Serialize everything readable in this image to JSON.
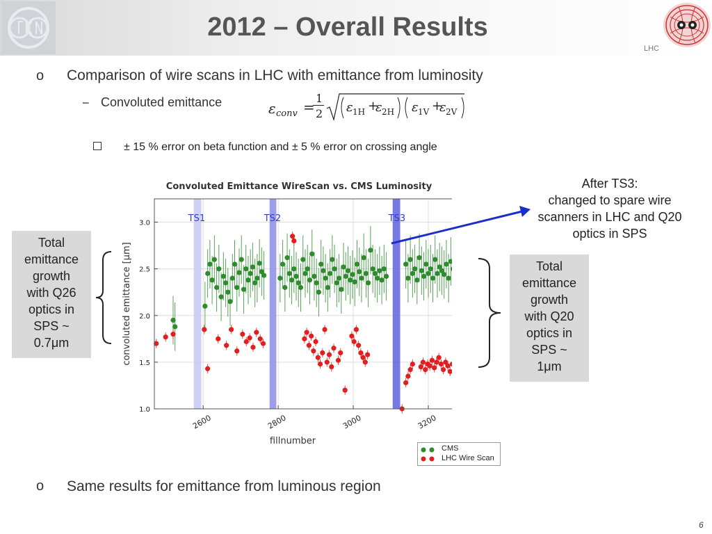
{
  "header": {
    "title": "2012 – Overall Results",
    "lhc_label": "LHC"
  },
  "bullets": {
    "b1": "Comparison of wire scans in LHC with emittance from luminosity",
    "dash": "−",
    "sub1": "Convoluted emittance",
    "sub2": "± 15 % error on beta function and ± 5 % error on crossing angle",
    "b2": "Same results for emittance from luminous region",
    "bullet_symbol": "o"
  },
  "formula": {
    "lhs": "ε",
    "lhs_sub": "conv",
    "eq": "=",
    "frac_num": "1",
    "frac_den": "2",
    "t1": "ε",
    "t1_sub": "1H",
    "plus": "+",
    "t2": "ε",
    "t2_sub": "2H",
    "t3": "ε",
    "t3_sub": "1V",
    "t4": "ε",
    "t4_sub": "2V"
  },
  "callouts": {
    "left": [
      "Total",
      "emittance",
      "growth",
      "with Q26",
      "optics in",
      "SPS ~",
      "0.7μm"
    ],
    "right": [
      "Total",
      "emittance",
      "growth",
      "with Q20",
      "optics in",
      "SPS ~",
      "1μm"
    ],
    "after_ts3": [
      "After TS3:",
      "changed to spare wire",
      "scanners in LHC and Q20",
      "optics in SPS"
    ]
  },
  "page_number": "6",
  "colors": {
    "cms": "#2e8b2e",
    "wire": "#e02020",
    "ts1": "#c8c8f5",
    "ts2": "#8c8ce6",
    "ts3": "#6060e0",
    "arrow": "#1a2fc8"
  },
  "chart_data": {
    "type": "scatter",
    "title": "Convoluted Emittance WireScan vs. CMS Luminosity",
    "xlabel": "fillnumber",
    "ylabel": "convoluted emittance [μm]",
    "xlim": [
      2470,
      3300
    ],
    "ylim": [
      1.0,
      3.25
    ],
    "xticks": [
      2600,
      2800,
      3000,
      3200
    ],
    "xtick_labels": [
      "2600",
      "2800",
      "3000",
      "3200"
    ],
    "yticks": [
      1.0,
      1.5,
      2.0,
      2.5,
      3.0
    ],
    "ytick_labels": [
      "1.0",
      "1.5",
      "2.0",
      "2.5",
      "3.0"
    ],
    "grid": true,
    "legend_position": "below-right",
    "bands": [
      {
        "label": "TS1",
        "x0": 2575,
        "x1": 2595,
        "color": "#c8c8f5"
      },
      {
        "label": "TS2",
        "x0": 2777,
        "x1": 2795,
        "color": "#8c8ce6"
      },
      {
        "label": "TS3",
        "x0": 3105,
        "x1": 3125,
        "color": "#6060e0"
      }
    ],
    "series": [
      {
        "name": "CMS",
        "color": "#2e8b2e",
        "err": 0.26,
        "points": [
          [
            2520,
            1.95
          ],
          [
            2525,
            1.88
          ],
          [
            2605,
            2.1
          ],
          [
            2612,
            2.45
          ],
          [
            2618,
            2.55
          ],
          [
            2624,
            2.38
          ],
          [
            2630,
            2.6
          ],
          [
            2636,
            2.3
          ],
          [
            2642,
            2.5
          ],
          [
            2648,
            2.2
          ],
          [
            2654,
            2.42
          ],
          [
            2660,
            2.35
          ],
          [
            2666,
            2.25
          ],
          [
            2672,
            2.15
          ],
          [
            2678,
            2.4
          ],
          [
            2684,
            2.55
          ],
          [
            2690,
            2.3
          ],
          [
            2696,
            2.46
          ],
          [
            2702,
            2.6
          ],
          [
            2708,
            2.28
          ],
          [
            2714,
            2.5
          ],
          [
            2720,
            2.38
          ],
          [
            2726,
            2.45
          ],
          [
            2732,
            2.52
          ],
          [
            2738,
            2.35
          ],
          [
            2744,
            2.4
          ],
          [
            2750,
            2.56
          ],
          [
            2756,
            2.47
          ],
          [
            2762,
            2.43
          ],
          [
            2805,
            2.4
          ],
          [
            2812,
            2.55
          ],
          [
            2818,
            2.3
          ],
          [
            2824,
            2.62
          ],
          [
            2830,
            2.45
          ],
          [
            2836,
            2.38
          ],
          [
            2842,
            2.5
          ],
          [
            2848,
            2.42
          ],
          [
            2854,
            2.35
          ],
          [
            2860,
            2.3
          ],
          [
            2866,
            2.6
          ],
          [
            2872,
            2.45
          ],
          [
            2878,
            2.5
          ],
          [
            2884,
            2.38
          ],
          [
            2890,
            2.66
          ],
          [
            2896,
            2.42
          ],
          [
            2902,
            2.35
          ],
          [
            2908,
            2.25
          ],
          [
            2914,
            2.55
          ],
          [
            2920,
            2.48
          ],
          [
            2926,
            2.4
          ],
          [
            2932,
            2.3
          ],
          [
            2938,
            2.45
          ],
          [
            2944,
            2.6
          ],
          [
            2950,
            2.5
          ],
          [
            2956,
            2.35
          ],
          [
            2962,
            2.4
          ],
          [
            2968,
            2.28
          ],
          [
            2974,
            2.52
          ],
          [
            2980,
            2.42
          ],
          [
            2986,
            2.48
          ],
          [
            2992,
            2.38
          ],
          [
            2998,
            2.44
          ],
          [
            3004,
            2.36
          ],
          [
            3010,
            2.55
          ],
          [
            3016,
            2.47
          ],
          [
            3022,
            2.4
          ],
          [
            3028,
            2.62
          ],
          [
            3034,
            2.45
          ],
          [
            3040,
            2.35
          ],
          [
            3046,
            2.7
          ],
          [
            3052,
            2.5
          ],
          [
            3058,
            2.45
          ],
          [
            3064,
            2.4
          ],
          [
            3070,
            2.48
          ],
          [
            3076,
            2.38
          ],
          [
            3082,
            2.5
          ],
          [
            3088,
            2.42
          ],
          [
            3140,
            2.55
          ],
          [
            3146,
            2.4
          ],
          [
            3152,
            2.6
          ],
          [
            3158,
            2.45
          ],
          [
            3164,
            2.5
          ],
          [
            3170,
            2.38
          ],
          [
            3176,
            2.62
          ],
          [
            3182,
            2.48
          ],
          [
            3188,
            2.42
          ],
          [
            3194,
            2.55
          ],
          [
            3200,
            2.45
          ],
          [
            3206,
            2.5
          ],
          [
            3212,
            2.4
          ],
          [
            3218,
            2.6
          ],
          [
            3224,
            2.45
          ],
          [
            3230,
            2.52
          ],
          [
            3236,
            2.48
          ],
          [
            3242,
            2.44
          ],
          [
            3248,
            2.55
          ],
          [
            3254,
            2.4
          ],
          [
            3260,
            2.58
          ],
          [
            3266,
            2.5
          ],
          [
            3272,
            2.45
          ],
          [
            3278,
            2.5
          ]
        ]
      },
      {
        "name": "LHC Wire Scan",
        "color": "#e02020",
        "err": 0.05,
        "points": [
          [
            2475,
            1.7
          ],
          [
            2500,
            1.77
          ],
          [
            2520,
            1.8
          ],
          [
            2603,
            1.85
          ],
          [
            2612,
            1.43
          ],
          [
            2640,
            1.75
          ],
          [
            2662,
            1.68
          ],
          [
            2675,
            1.85
          ],
          [
            2690,
            1.62
          ],
          [
            2705,
            1.8
          ],
          [
            2715,
            1.72
          ],
          [
            2724,
            1.76
          ],
          [
            2733,
            1.66
          ],
          [
            2742,
            1.82
          ],
          [
            2752,
            1.75
          ],
          [
            2760,
            1.7
          ],
          [
            2838,
            2.85
          ],
          [
            2842,
            2.8
          ],
          [
            2870,
            1.75
          ],
          [
            2876,
            1.82
          ],
          [
            2882,
            1.68
          ],
          [
            2888,
            1.78
          ],
          [
            2894,
            1.62
          ],
          [
            2900,
            1.72
          ],
          [
            2906,
            1.55
          ],
          [
            2912,
            1.48
          ],
          [
            2918,
            1.6
          ],
          [
            2924,
            1.85
          ],
          [
            2930,
            1.5
          ],
          [
            2936,
            1.58
          ],
          [
            2942,
            1.45
          ],
          [
            2948,
            1.65
          ],
          [
            2960,
            1.52
          ],
          [
            2966,
            1.6
          ],
          [
            2978,
            1.2
          ],
          [
            2996,
            1.78
          ],
          [
            3002,
            1.72
          ],
          [
            3008,
            1.85
          ],
          [
            3014,
            1.68
          ],
          [
            3020,
            1.6
          ],
          [
            3026,
            1.55
          ],
          [
            3032,
            1.5
          ],
          [
            3038,
            1.58
          ],
          [
            3130,
            1.0
          ],
          [
            3140,
            1.28
          ],
          [
            3146,
            1.35
          ],
          [
            3152,
            1.42
          ],
          [
            3158,
            1.48
          ],
          [
            3180,
            1.45
          ],
          [
            3186,
            1.5
          ],
          [
            3192,
            1.42
          ],
          [
            3198,
            1.48
          ],
          [
            3204,
            1.46
          ],
          [
            3210,
            1.52
          ],
          [
            3216,
            1.44
          ],
          [
            3222,
            1.5
          ],
          [
            3228,
            1.55
          ],
          [
            3234,
            1.48
          ],
          [
            3240,
            1.42
          ],
          [
            3246,
            1.5
          ],
          [
            3252,
            1.46
          ],
          [
            3258,
            1.4
          ],
          [
            3264,
            1.48
          ]
        ]
      }
    ]
  }
}
